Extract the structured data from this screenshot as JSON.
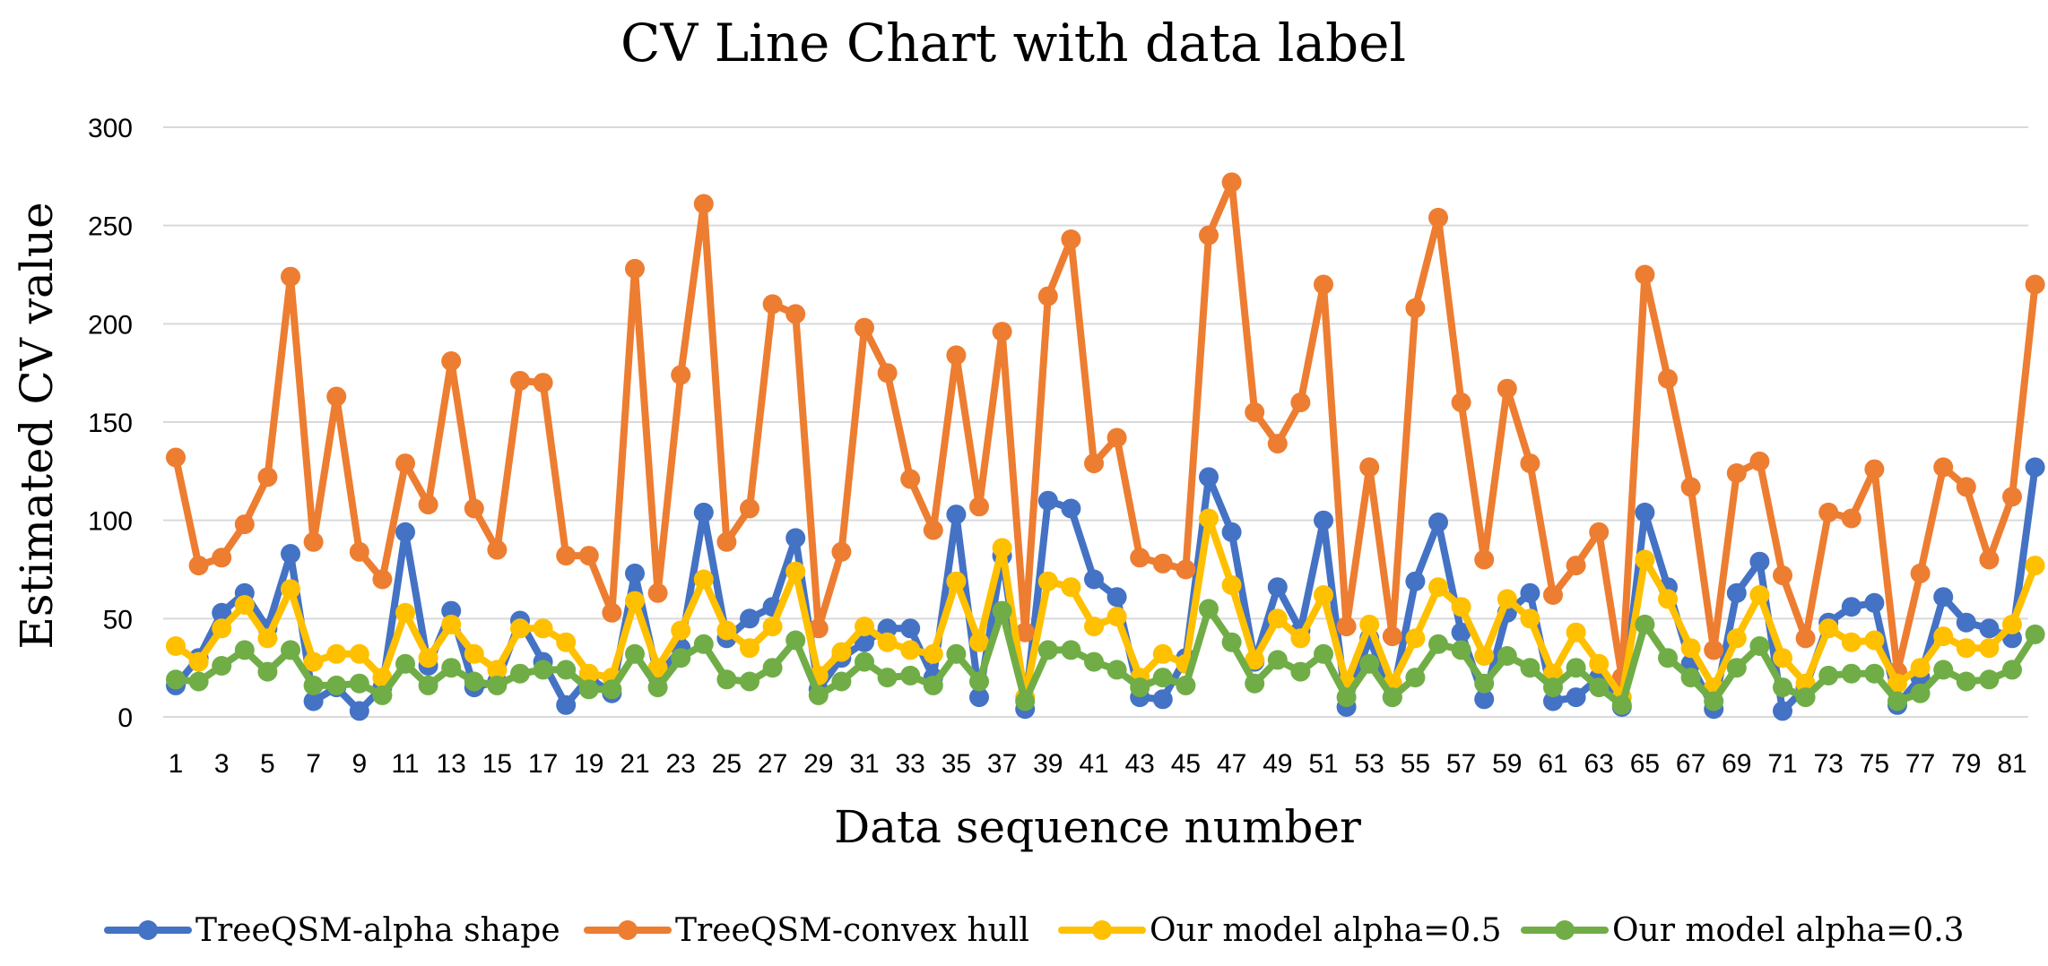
{
  "chart_data": {
    "type": "line",
    "title": "CV Line Chart with data label",
    "xlabel": "Data sequence number",
    "ylabel": "Estimated CV value",
    "ylim": [
      0,
      300
    ],
    "yticks": [
      0,
      50,
      100,
      150,
      200,
      250,
      300
    ],
    "grid": true,
    "legend_position": "bottom",
    "x": [
      1,
      2,
      3,
      4,
      5,
      6,
      7,
      8,
      9,
      10,
      11,
      12,
      13,
      14,
      15,
      16,
      17,
      18,
      19,
      20,
      21,
      22,
      23,
      24,
      25,
      26,
      27,
      28,
      29,
      30,
      31,
      32,
      33,
      34,
      35,
      36,
      37,
      38,
      39,
      40,
      41,
      42,
      43,
      44,
      45,
      46,
      47,
      48,
      49,
      50,
      51,
      52,
      53,
      54,
      55,
      56,
      57,
      58,
      59,
      60,
      61,
      62,
      63,
      64,
      65,
      66,
      67,
      68,
      69,
      70,
      71,
      72,
      73,
      74,
      75,
      76,
      77,
      78,
      79,
      80,
      81,
      82
    ],
    "x_tick_labels": [
      "1",
      "3",
      "5",
      "7",
      "9",
      "11",
      "13",
      "15",
      "17",
      "19",
      "21",
      "23",
      "25",
      "27",
      "29",
      "31",
      "33",
      "35",
      "37",
      "39",
      "41",
      "43",
      "45",
      "47",
      "49",
      "51",
      "53",
      "55",
      "57",
      "59",
      "61",
      "63",
      "65",
      "67",
      "69",
      "71",
      "73",
      "75",
      "77",
      "79",
      "81"
    ],
    "series": [
      {
        "name": "TreeQSM-alpha shape",
        "color": "#4472C4",
        "values": [
          16,
          30,
          53,
          63,
          45,
          83,
          8,
          15,
          3,
          15,
          94,
          26,
          54,
          15,
          18,
          49,
          28,
          6,
          20,
          12,
          73,
          20,
          35,
          104,
          40,
          50,
          56,
          91,
          14,
          30,
          38,
          45,
          45,
          20,
          103,
          10,
          82,
          4,
          110,
          106,
          70,
          61,
          10,
          9,
          30,
          122,
          94,
          28,
          66,
          44,
          100,
          5,
          40,
          10,
          69,
          99,
          43,
          9,
          53,
          63,
          8,
          10,
          20,
          5,
          104,
          66,
          27,
          4,
          63,
          79,
          3,
          15,
          48,
          56,
          58,
          6,
          20,
          61,
          48,
          45,
          40,
          127
        ]
      },
      {
        "name": "TreeQSM-convex hull",
        "color": "#ED7D31",
        "values": [
          132,
          77,
          81,
          98,
          122,
          224,
          89,
          163,
          84,
          70,
          129,
          108,
          181,
          106,
          85,
          171,
          170,
          82,
          82,
          53,
          228,
          63,
          174,
          261,
          89,
          106,
          210,
          205,
          45,
          84,
          198,
          175,
          121,
          95,
          184,
          107,
          196,
          43,
          214,
          243,
          129,
          142,
          81,
          78,
          75,
          245,
          272,
          155,
          139,
          160,
          220,
          46,
          127,
          41,
          208,
          254,
          160,
          80,
          167,
          129,
          62,
          77,
          94,
          20,
          225,
          172,
          117,
          34,
          124,
          130,
          72,
          40,
          104,
          101,
          126,
          23,
          73,
          127,
          117,
          80,
          112,
          220
        ]
      },
      {
        "name": "Our model alpha=0.5",
        "color": "#FFC000",
        "values": [
          36,
          28,
          45,
          57,
          40,
          65,
          28,
          32,
          32,
          20,
          53,
          30,
          47,
          32,
          24,
          45,
          45,
          38,
          22,
          20,
          59,
          25,
          44,
          70,
          44,
          35,
          46,
          74,
          21,
          33,
          46,
          38,
          34,
          32,
          69,
          38,
          86,
          10,
          69,
          66,
          46,
          51,
          20,
          32,
          27,
          101,
          67,
          29,
          50,
          40,
          62,
          17,
          47,
          17,
          40,
          66,
          56,
          31,
          60,
          50,
          22,
          43,
          27,
          10,
          80,
          60,
          35,
          15,
          40,
          62,
          30,
          17,
          45,
          38,
          39,
          17,
          25,
          41,
          35,
          35,
          47,
          77
        ]
      },
      {
        "name": "Our model alpha=0.3",
        "color": "#70AD47",
        "values": [
          19,
          18,
          26,
          34,
          23,
          34,
          16,
          16,
          17,
          11,
          27,
          16,
          25,
          18,
          16,
          22,
          24,
          24,
          14,
          14,
          32,
          15,
          30,
          37,
          19,
          18,
          25,
          39,
          11,
          18,
          28,
          20,
          21,
          16,
          32,
          18,
          54,
          8,
          34,
          34,
          28,
          24,
          15,
          20,
          16,
          55,
          38,
          17,
          29,
          23,
          32,
          10,
          27,
          10,
          20,
          37,
          34,
          17,
          31,
          25,
          15,
          25,
          15,
          6,
          47,
          30,
          20,
          8,
          25,
          36,
          15,
          10,
          21,
          22,
          22,
          8,
          12,
          24,
          18,
          19,
          24,
          42
        ]
      }
    ]
  }
}
